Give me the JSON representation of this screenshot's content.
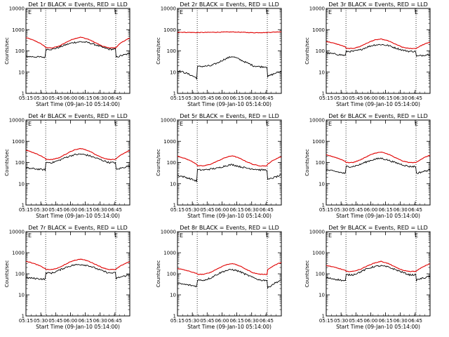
{
  "chart_data": [
    {
      "type": "line",
      "title": "Det 1r BLACK = Events, RED = LLD",
      "ylabel": "Counts/sec",
      "xlabel": "Start Time (09-Jan-10 05:14:00)",
      "xticks": [
        "05:15",
        "05:30",
        "05:45",
        "06:00",
        "06:15",
        "06:30",
        "06:45"
      ],
      "ylog": true,
      "ylim": [
        1,
        10000
      ],
      "yticklabels": [
        "1",
        "10",
        "100",
        "1000",
        "10000"
      ],
      "corner_marks": [
        "E",
        "E"
      ],
      "black": {
        "pre": [
          55,
          50
        ],
        "mid": [
          120,
          120,
          150,
          200,
          250,
          270,
          250,
          200,
          150,
          120,
          120
        ],
        "post": [
          50,
          75
        ]
      },
      "red": {
        "pre": [
          420,
          150
        ],
        "mid": [
          140,
          140,
          170,
          260,
          370,
          440,
          360,
          250,
          170,
          140,
          140
        ],
        "post": [
          140,
          400
        ]
      }
    },
    {
      "type": "line",
      "title": "Det 2r BLACK = Events, RED = LLD",
      "ylabel": "Counts/sec",
      "xlabel": "Start Time (09-Jan-10 05:14:00)",
      "xticks": [
        "05:15",
        "05:30",
        "05:45",
        "06:00",
        "06:15",
        "06:30",
        "06:45"
      ],
      "ylog": true,
      "ylim": [
        1,
        10000
      ],
      "yticklabels": [
        "1",
        "10",
        "100",
        "1000",
        "10000"
      ],
      "corner_marks": [
        "E",
        "E"
      ],
      "black": {
        "pre": [
          12,
          5
        ],
        "mid": [
          18,
          19,
          20,
          28,
          42,
          55,
          40,
          28,
          20,
          18,
          18
        ],
        "post": [
          6,
          11
        ]
      },
      "red": {
        "pre": [
          760,
          730
        ],
        "mid": [
          730,
          740,
          750,
          760,
          770,
          780,
          760,
          740,
          720,
          730,
          730
        ],
        "post": [
          740,
          800
        ]
      }
    },
    {
      "type": "line",
      "title": "Det 3r BLACK = Events, RED = LLD",
      "ylabel": "Counts/sec",
      "xlabel": "Start Time (09-Jan-10 05:14:00)",
      "xticks": [
        "05:15",
        "05:30",
        "05:45",
        "06:00",
        "06:15",
        "06:30",
        "06:45"
      ],
      "ylog": true,
      "ylim": [
        1,
        10000
      ],
      "yticklabels": [
        "1",
        "10",
        "100",
        "1000",
        "10000"
      ],
      "corner_marks": [
        "E",
        "E"
      ],
      "black": {
        "pre": [
          80,
          60
        ],
        "mid": [
          95,
          95,
          110,
          150,
          190,
          200,
          180,
          140,
          110,
          95,
          95
        ],
        "post": [
          55,
          70
        ]
      },
      "red": {
        "pre": [
          280,
          150
        ],
        "mid": [
          130,
          130,
          160,
          230,
          320,
          360,
          300,
          210,
          150,
          130,
          130
        ],
        "post": [
          130,
          260
        ]
      }
    },
    {
      "type": "line",
      "title": "Det 4r BLACK = Events, RED = LLD",
      "ylabel": "Counts/sec",
      "xlabel": "Start Time (09-Jan-10 05:14:00)",
      "xticks": [
        "05:15",
        "05:30",
        "05:45",
        "06:00",
        "06:15",
        "06:30",
        "06:45"
      ],
      "ylog": true,
      "ylim": [
        1,
        10000
      ],
      "yticklabels": [
        "1",
        "10",
        "100",
        "1000",
        "10000"
      ],
      "corner_marks": [
        "E",
        "E"
      ],
      "black": {
        "pre": [
          55,
          45
        ],
        "mid": [
          100,
          100,
          130,
          180,
          230,
          250,
          220,
          170,
          130,
          100,
          100
        ],
        "post": [
          45,
          70
        ]
      },
      "red": {
        "pre": [
          380,
          150
        ],
        "mid": [
          140,
          140,
          170,
          260,
          380,
          460,
          370,
          250,
          170,
          140,
          140
        ],
        "post": [
          140,
          370
        ]
      }
    },
    {
      "type": "line",
      "title": "Det 5r BLACK = Events, RED = LLD",
      "ylabel": "Counts/sec",
      "xlabel": "Start Time (09-Jan-10 05:14:00)",
      "xticks": [
        "05:15",
        "05:30",
        "05:45",
        "06:00",
        "06:15",
        "06:30",
        "06:45"
      ],
      "ylog": true,
      "ylim": [
        1,
        10000
      ],
      "yticklabels": [
        "1",
        "10",
        "100",
        "1000",
        "10000"
      ],
      "corner_marks": [
        "E",
        "E"
      ],
      "black": {
        "pre": [
          25,
          13
        ],
        "mid": [
          45,
          45,
          50,
          55,
          70,
          80,
          65,
          55,
          50,
          45,
          45
        ],
        "post": [
          15,
          25
        ]
      },
      "red": {
        "pre": [
          200,
          80
        ],
        "mid": [
          70,
          70,
          85,
          120,
          170,
          210,
          160,
          110,
          80,
          70,
          70
        ],
        "post": [
          80,
          190
        ]
      }
    },
    {
      "type": "line",
      "title": "Det 6r BLACK = Events, RED = LLD",
      "ylabel": "Counts/sec",
      "xlabel": "Start Time (09-Jan-10 05:14:00)",
      "xticks": [
        "05:15",
        "05:30",
        "05:45",
        "06:00",
        "06:15",
        "06:30",
        "06:45"
      ],
      "ylog": true,
      "ylim": [
        1,
        10000
      ],
      "yticklabels": [
        "1",
        "10",
        "100",
        "1000",
        "10000"
      ],
      "corner_marks": [
        "E",
        "E"
      ],
      "black": {
        "pre": [
          45,
          30
        ],
        "mid": [
          65,
          65,
          80,
          110,
          140,
          160,
          130,
          100,
          80,
          65,
          65
        ],
        "post": [
          30,
          45
        ]
      },
      "red": {
        "pre": [
          230,
          110
        ],
        "mid": [
          100,
          100,
          130,
          190,
          270,
          310,
          250,
          170,
          120,
          100,
          100
        ],
        "post": [
          100,
          220
        ]
      }
    },
    {
      "type": "line",
      "title": "Det 7r BLACK = Events, RED = LLD",
      "ylabel": "Counts/sec",
      "xlabel": "Start Time (09-Jan-10 05:14:00)",
      "xticks": [
        "05:15",
        "05:30",
        "05:45",
        "06:00",
        "06:15",
        "06:30",
        "06:45"
      ],
      "ylog": true,
      "ylim": [
        1,
        10000
      ],
      "yticklabels": [
        "1",
        "10",
        "100",
        "1000",
        "10000"
      ],
      "corner_marks": [
        "E",
        "E"
      ],
      "black": {
        "pre": [
          65,
          55
        ],
        "mid": [
          110,
          110,
          150,
          210,
          260,
          280,
          250,
          190,
          140,
          110,
          110
        ],
        "post": [
          60,
          90
        ]
      },
      "red": {
        "pre": [
          400,
          170
        ],
        "mid": [
          160,
          160,
          200,
          300,
          430,
          500,
          410,
          290,
          200,
          160,
          160
        ],
        "post": [
          160,
          380
        ]
      }
    },
    {
      "type": "line",
      "title": "Det 8r BLACK = Events, RED = LLD",
      "ylabel": "Counts/sec",
      "xlabel": "Start Time (09-Jan-10 05:14:00)",
      "xticks": [
        "05:15",
        "05:30",
        "05:45",
        "06:00",
        "06:15",
        "06:30",
        "06:45"
      ],
      "ylog": true,
      "ylim": [
        1,
        10000
      ],
      "yticklabels": [
        "1",
        "10",
        "100",
        "1000",
        "10000"
      ],
      "corner_marks": [
        "E",
        "E"
      ],
      "black": {
        "pre": [
          35,
          25
        ],
        "mid": [
          50,
          50,
          65,
          100,
          140,
          160,
          130,
          90,
          65,
          50,
          50
        ],
        "post": [
          20,
          50
        ]
      },
      "red": {
        "pre": [
          180,
          100
        ],
        "mid": [
          95,
          95,
          120,
          180,
          260,
          310,
          240,
          160,
          110,
          95,
          95
        ],
        "post": [
          150,
          350
        ]
      }
    },
    {
      "type": "line",
      "title": "Det 9r BLACK = Events, RED = LLD",
      "ylabel": "Counts/sec",
      "xlabel": "Start Time (09-Jan-10 05:14:00)",
      "xticks": [
        "05:15",
        "05:30",
        "05:45",
        "06:00",
        "06:15",
        "06:30",
        "06:45"
      ],
      "ylog": true,
      "ylim": [
        1,
        10000
      ],
      "yticklabels": [
        "1",
        "10",
        "100",
        "1000",
        "10000"
      ],
      "corner_marks": [
        "E",
        "E"
      ],
      "black": {
        "pre": [
          65,
          45
        ],
        "mid": [
          90,
          90,
          120,
          170,
          220,
          240,
          210,
          160,
          120,
          90,
          90
        ],
        "post": [
          50,
          75
        ]
      },
      "red": {
        "pre": [
          250,
          140
        ],
        "mid": [
          130,
          130,
          160,
          230,
          320,
          390,
          310,
          210,
          150,
          130,
          130
        ],
        "post": [
          130,
          300
        ]
      }
    }
  ]
}
